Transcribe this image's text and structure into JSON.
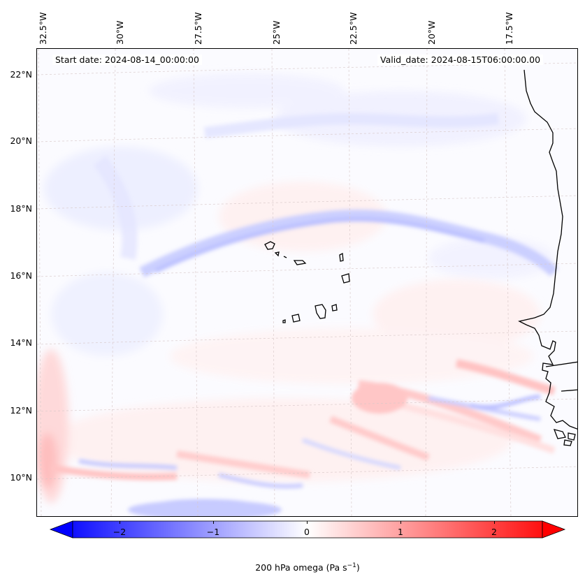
{
  "map": {
    "projection": "PlateCarree",
    "start_date_label": "Start date: 2024-08-14_00:00:00",
    "valid_date_label": "Valid_date: 2024-08-15T06:00:00.00",
    "lon_labels": [
      "32.5°W",
      "30°W",
      "27.5°W",
      "25°W",
      "22.5°W",
      "20°W",
      "17.5°W"
    ],
    "lat_labels": [
      "22°N",
      "20°N",
      "18°N",
      "16°N",
      "14°N",
      "12°N",
      "10°N"
    ],
    "features": [
      "Cape Verde islands",
      "West African coastline (Mauritania, Senegal, Gambia, Guinea-Bissau)"
    ]
  },
  "colorbar": {
    "label_prefix": "200 hPa omega (Pa s",
    "label_exp": "−1",
    "label_suffix": ")",
    "ticks": [
      "−2",
      "−1",
      "0",
      "1",
      "2"
    ],
    "range": [
      -2.7,
      2.7
    ],
    "colors": {
      "negative": "#0000ff",
      "zero": "#ffffff",
      "positive": "#ff0000"
    }
  }
}
